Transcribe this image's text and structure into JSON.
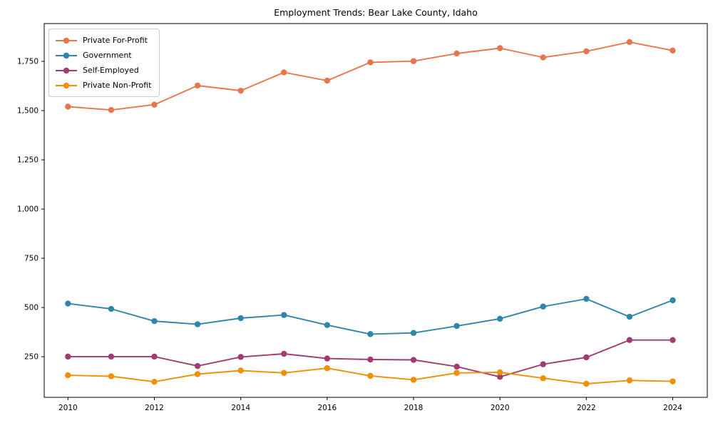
{
  "chart_data": {
    "type": "line",
    "title": "Employment Trends: Bear Lake County, Idaho",
    "xlabel": "",
    "ylabel": "",
    "x": [
      2010,
      2011,
      2012,
      2013,
      2014,
      2015,
      2016,
      2017,
      2018,
      2019,
      2020,
      2021,
      2022,
      2023,
      2024
    ],
    "x_ticks": [
      2010,
      2012,
      2014,
      2016,
      2018,
      2020,
      2022,
      2024
    ],
    "x_tick_labels": [
      "2010",
      "2012",
      "2014",
      "2016",
      "2018",
      "2020",
      "2022",
      "2024"
    ],
    "y_ticks": [
      250,
      500,
      750,
      1000,
      1250,
      1500,
      1750
    ],
    "y_tick_labels": [
      "250",
      "500",
      "750",
      "1,000",
      "1,250",
      "1,500",
      "1,750"
    ],
    "xlim": [
      2009.45,
      2024.8
    ],
    "ylim": [
      44,
      1942
    ],
    "grid": false,
    "legend_position": "upper left",
    "series": [
      {
        "name": "Private For-Profit",
        "color": "#E8764C",
        "values": [
          1520,
          1503,
          1530,
          1627,
          1601,
          1694,
          1652,
          1745,
          1751,
          1790,
          1817,
          1770,
          1801,
          1848,
          1805
        ]
      },
      {
        "name": "Government",
        "color": "#2E86AB",
        "values": [
          520,
          493,
          431,
          415,
          446,
          462,
          411,
          365,
          371,
          406,
          443,
          505,
          544,
          453,
          537
        ]
      },
      {
        "name": "Self-Employed",
        "color": "#A23B72",
        "values": [
          251,
          251,
          251,
          203,
          249,
          265,
          241,
          236,
          234,
          200,
          148,
          212,
          247,
          335,
          335
        ]
      },
      {
        "name": "Private Non-Profit",
        "color": "#F18F01",
        "values": [
          156,
          151,
          123,
          162,
          180,
          168,
          192,
          153,
          133,
          168,
          171,
          141,
          113,
          130,
          125
        ]
      }
    ]
  }
}
